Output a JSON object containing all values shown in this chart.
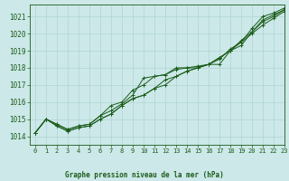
{
  "title": "Graphe pression niveau de la mer (hPa)",
  "bg_color": "#cce8e8",
  "grid_color": "#aacccc",
  "line_color": "#1a5c1a",
  "marker_color": "#1a5c1a",
  "xlabel_color": "#1a5c1a",
  "xmin": -0.5,
  "xmax": 23,
  "ymin": 1013.5,
  "ymax": 1021.7,
  "yticks": [
    1014,
    1015,
    1016,
    1017,
    1018,
    1019,
    1020,
    1021
  ],
  "xticks": [
    0,
    1,
    2,
    3,
    4,
    5,
    6,
    7,
    8,
    9,
    10,
    11,
    12,
    13,
    14,
    15,
    16,
    17,
    18,
    19,
    20,
    21,
    22,
    23
  ],
  "series": [
    [
      1014.2,
      1015.0,
      1014.7,
      1014.4,
      1014.6,
      1014.7,
      1015.2,
      1015.8,
      1016.0,
      1016.7,
      1017.0,
      1017.5,
      1017.6,
      1018.0,
      1018.0,
      1018.1,
      1018.2,
      1018.5,
      1019.1,
      1019.5,
      1020.3,
      1021.0,
      1021.2,
      1021.5
    ],
    [
      1014.2,
      1015.0,
      1014.7,
      1014.4,
      1014.6,
      1014.7,
      1015.2,
      1015.5,
      1015.9,
      1016.4,
      1017.4,
      1017.5,
      1017.6,
      1017.9,
      1018.0,
      1018.0,
      1018.2,
      1018.2,
      1019.0,
      1019.3,
      1020.1,
      1020.8,
      1021.1,
      1021.4
    ],
    [
      1014.2,
      1015.0,
      1014.6,
      1014.3,
      1014.5,
      1014.6,
      1015.0,
      1015.3,
      1015.8,
      1016.2,
      1016.4,
      1016.8,
      1017.3,
      1017.5,
      1017.8,
      1018.0,
      1018.2,
      1018.6,
      1019.0,
      1019.6,
      1020.1,
      1020.7,
      1021.0,
      1021.4
    ],
    [
      1014.2,
      1015.0,
      1014.6,
      1014.3,
      1014.5,
      1014.6,
      1015.0,
      1015.3,
      1015.8,
      1016.2,
      1016.4,
      1016.8,
      1017.0,
      1017.5,
      1017.8,
      1018.0,
      1018.2,
      1018.6,
      1019.0,
      1019.5,
      1020.0,
      1020.5,
      1020.9,
      1021.3
    ]
  ]
}
